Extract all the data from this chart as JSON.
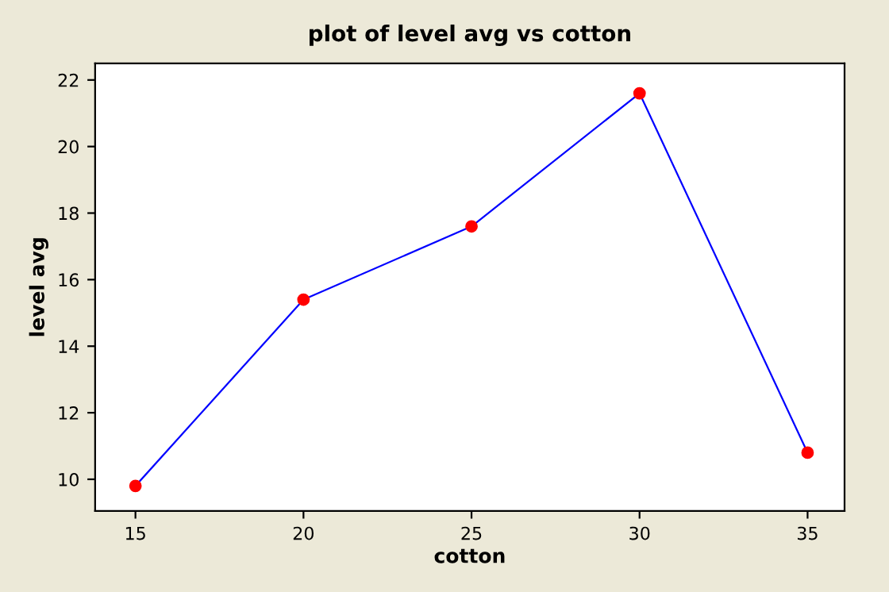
{
  "chart_data": {
    "type": "line",
    "title": "plot of level avg vs cotton",
    "xlabel": "cotton",
    "ylabel": "level avg",
    "x": [
      15,
      20,
      25,
      30,
      35
    ],
    "series": [
      {
        "color": "#0000ff",
        "colors": [
          "#ff0000",
          "#ff0000",
          "#ff0000",
          "#ff0000",
          "#ff0000"
        ],
        "values": [
          9.8,
          15.4,
          17.6,
          21.6,
          10.8
        ]
      }
    ],
    "xlim": [
      13.8,
      36.1
    ],
    "xticks": [
      15,
      20,
      25,
      30,
      35
    ],
    "ylim": [
      9.05,
      22.5
    ],
    "yticks": [
      10,
      12,
      14,
      16,
      18,
      20,
      22
    ],
    "marker": "circle",
    "line_style": "solid",
    "grid": false,
    "legend": false
  }
}
